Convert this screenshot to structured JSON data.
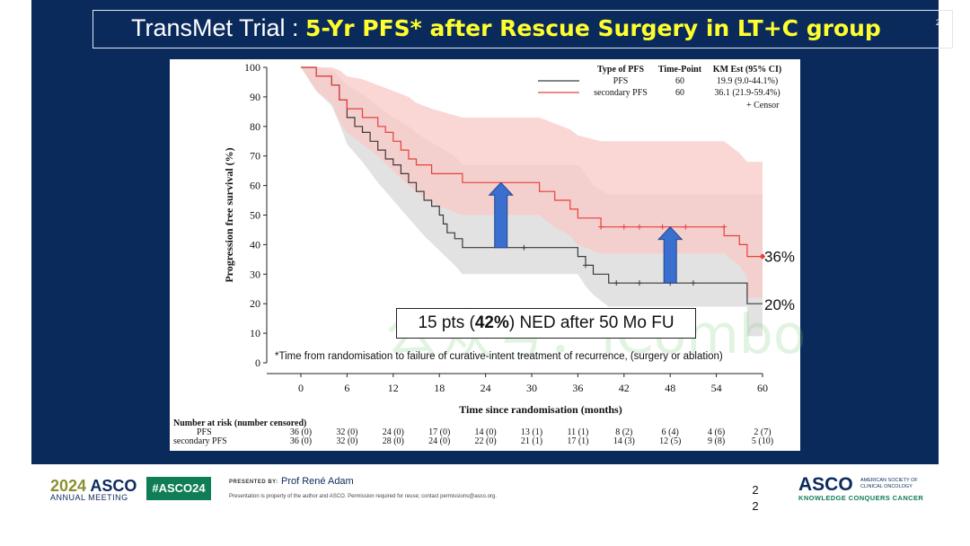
{
  "slide": {
    "title_prefix": "TransMet Trial : ",
    "title_highlight": "5-Yr PFS* after Rescue Surgery in LT+C group",
    "slide_number": "22",
    "annotation_box": {
      "pre": "15 pts (",
      "bold": "42%",
      "post": ") NED after 50 Mo FU"
    },
    "footnote": "*Time from randomisation to failure of curative-intent  treatment of recurrence, (surgery or ablation)",
    "watermark": "公众号：iCombo"
  },
  "chart_data": {
    "type": "line",
    "title": "",
    "xlabel": "Time since randomisation (months)",
    "ylabel": "Progression free survival (%)",
    "xlim": [
      0,
      60
    ],
    "ylim": [
      0,
      100
    ],
    "xticks": [
      0,
      6,
      12,
      18,
      24,
      30,
      36,
      42,
      48,
      54,
      60
    ],
    "yticks": [
      0,
      10,
      20,
      30,
      40,
      50,
      60,
      70,
      80,
      90,
      100
    ],
    "colors": {
      "pfs": "#3a3a3a",
      "secondary_pfs": "#e8413c",
      "pfs_ci": "#e2e2e2",
      "secondary_ci": "#f8c8c6",
      "arrow": "#3a6fd0"
    },
    "legend": {
      "headers": [
        "Type of PFS",
        "Time-Point",
        "KM Est (95% CI)"
      ],
      "rows": [
        {
          "type": "PFS",
          "time_point": "60",
          "km_est": "19.9 (9.0-44.1%)"
        },
        {
          "type": "secondary PFS",
          "time_point": "60",
          "km_est": "36.1 (21.9-59.4%)"
        }
      ],
      "censor_label": "+  Censor"
    },
    "end_labels": {
      "secondary": "36%",
      "pfs": "20%"
    },
    "series": [
      {
        "name": "PFS",
        "steps": [
          [
            0,
            100
          ],
          [
            2,
            100
          ],
          [
            2,
            97
          ],
          [
            4,
            97
          ],
          [
            4,
            94
          ],
          [
            5,
            94
          ],
          [
            5,
            89
          ],
          [
            6,
            89
          ],
          [
            6,
            83
          ],
          [
            7,
            83
          ],
          [
            7,
            80
          ],
          [
            8,
            80
          ],
          [
            8,
            78
          ],
          [
            9,
            78
          ],
          [
            9,
            75
          ],
          [
            10,
            75
          ],
          [
            10,
            72
          ],
          [
            11,
            72
          ],
          [
            11,
            69
          ],
          [
            12,
            69
          ],
          [
            12,
            67
          ],
          [
            13,
            67
          ],
          [
            13,
            64
          ],
          [
            14,
            64
          ],
          [
            14,
            61
          ],
          [
            15,
            61
          ],
          [
            15,
            58
          ],
          [
            16,
            58
          ],
          [
            16,
            55
          ],
          [
            17,
            55
          ],
          [
            17,
            53
          ],
          [
            18,
            53
          ],
          [
            18,
            50
          ],
          [
            18.5,
            50
          ],
          [
            18.5,
            47
          ],
          [
            19,
            47
          ],
          [
            19,
            44
          ],
          [
            20,
            44
          ],
          [
            20,
            42
          ],
          [
            21,
            42
          ],
          [
            21,
            39
          ],
          [
            36,
            39
          ],
          [
            36,
            36
          ],
          [
            37,
            36
          ],
          [
            37,
            33
          ],
          [
            38,
            33
          ],
          [
            38,
            30
          ],
          [
            40,
            30
          ],
          [
            40,
            27
          ],
          [
            58,
            27
          ],
          [
            58,
            20
          ],
          [
            60,
            20
          ]
        ],
        "ci_upper": [
          [
            0,
            100
          ],
          [
            2,
            100
          ],
          [
            4,
            99
          ],
          [
            5,
            97
          ],
          [
            6,
            94
          ],
          [
            8,
            91
          ],
          [
            10,
            87
          ],
          [
            12,
            83
          ],
          [
            14,
            80
          ],
          [
            16,
            76
          ],
          [
            18,
            73
          ],
          [
            20,
            70
          ],
          [
            21,
            67
          ],
          [
            36,
            67
          ],
          [
            37,
            64
          ],
          [
            38,
            60
          ],
          [
            40,
            57
          ],
          [
            58,
            57
          ],
          [
            60,
            57
          ]
        ],
        "ci_lower": [
          [
            0,
            100
          ],
          [
            2,
            92
          ],
          [
            4,
            87
          ],
          [
            5,
            81
          ],
          [
            6,
            74
          ],
          [
            8,
            68
          ],
          [
            10,
            61
          ],
          [
            12,
            55
          ],
          [
            14,
            49
          ],
          [
            16,
            43
          ],
          [
            18,
            38
          ],
          [
            20,
            33
          ],
          [
            21,
            30
          ],
          [
            36,
            30
          ],
          [
            37,
            26
          ],
          [
            38,
            23
          ],
          [
            40,
            19
          ],
          [
            58,
            19
          ],
          [
            58,
            9
          ],
          [
            60,
            9
          ]
        ],
        "censors": [
          [
            29,
            39
          ],
          [
            37,
            33
          ],
          [
            41,
            27
          ],
          [
            44,
            27
          ],
          [
            48,
            27
          ],
          [
            51,
            27
          ]
        ]
      },
      {
        "name": "secondary PFS",
        "steps": [
          [
            0,
            100
          ],
          [
            2,
            100
          ],
          [
            2,
            97
          ],
          [
            4,
            97
          ],
          [
            4,
            94
          ],
          [
            5,
            94
          ],
          [
            5,
            89
          ],
          [
            6,
            89
          ],
          [
            6,
            86
          ],
          [
            8,
            86
          ],
          [
            8,
            83
          ],
          [
            10,
            83
          ],
          [
            10,
            80
          ],
          [
            11,
            80
          ],
          [
            11,
            78
          ],
          [
            12,
            78
          ],
          [
            12,
            75
          ],
          [
            13,
            75
          ],
          [
            13,
            72
          ],
          [
            14,
            72
          ],
          [
            14,
            69
          ],
          [
            15,
            69
          ],
          [
            15,
            67
          ],
          [
            17,
            67
          ],
          [
            17,
            64
          ],
          [
            21,
            64
          ],
          [
            21,
            61
          ],
          [
            31,
            61
          ],
          [
            31,
            58
          ],
          [
            33,
            58
          ],
          [
            33,
            55
          ],
          [
            35,
            55
          ],
          [
            35,
            52
          ],
          [
            36,
            52
          ],
          [
            36,
            49
          ],
          [
            39,
            49
          ],
          [
            39,
            46
          ],
          [
            55,
            46
          ],
          [
            55,
            43
          ],
          [
            57,
            43
          ],
          [
            57,
            40
          ],
          [
            58,
            40
          ],
          [
            58,
            36
          ],
          [
            60,
            36
          ]
        ],
        "ci_upper": [
          [
            0,
            100
          ],
          [
            2,
            100
          ],
          [
            4,
            100
          ],
          [
            5,
            99
          ],
          [
            6,
            97
          ],
          [
            8,
            96
          ],
          [
            10,
            94
          ],
          [
            12,
            92
          ],
          [
            14,
            90
          ],
          [
            15,
            88
          ],
          [
            17,
            86
          ],
          [
            21,
            83
          ],
          [
            31,
            83
          ],
          [
            33,
            81
          ],
          [
            35,
            79
          ],
          [
            36,
            77
          ],
          [
            39,
            75
          ],
          [
            55,
            75
          ],
          [
            57,
            71
          ],
          [
            58,
            68
          ],
          [
            60,
            68
          ]
        ],
        "ci_lower": [
          [
            0,
            100
          ],
          [
            2,
            92
          ],
          [
            4,
            88
          ],
          [
            5,
            82
          ],
          [
            6,
            78
          ],
          [
            8,
            74
          ],
          [
            10,
            70
          ],
          [
            12,
            65
          ],
          [
            14,
            60
          ],
          [
            15,
            58
          ],
          [
            17,
            54
          ],
          [
            21,
            50
          ],
          [
            31,
            50
          ],
          [
            33,
            46
          ],
          [
            35,
            43
          ],
          [
            36,
            40
          ],
          [
            39,
            37
          ],
          [
            55,
            37
          ],
          [
            57,
            33
          ],
          [
            58,
            29
          ],
          [
            58,
            22
          ],
          [
            60,
            22
          ]
        ],
        "censors": [
          [
            39,
            46
          ],
          [
            42,
            46
          ],
          [
            44,
            46
          ],
          [
            47,
            46
          ],
          [
            50,
            46
          ],
          [
            55,
            46
          ],
          [
            60,
            36
          ]
        ]
      }
    ],
    "arrows": [
      {
        "x": 26,
        "from_y": 39,
        "to_y": 61
      },
      {
        "x": 48,
        "from_y": 27,
        "to_y": 46
      }
    ],
    "risk_table": {
      "header": "Number at risk (number censored)",
      "times": [
        0,
        6,
        12,
        18,
        24,
        30,
        36,
        42,
        48,
        54,
        60
      ],
      "rows": [
        {
          "label": "PFS",
          "values": [
            "36 (0)",
            "32 (0)",
            "24 (0)",
            "17 (0)",
            "14 (0)",
            "13 (1)",
            "11 (1)",
            "8 (2)",
            "6 (4)",
            "4 (6)",
            "2 (7)"
          ]
        },
        {
          "label": "secondary PFS",
          "values": [
            "36 (0)",
            "32 (0)",
            "28 (0)",
            "24 (0)",
            "22 (0)",
            "21 (1)",
            "17 (1)",
            "14 (3)",
            "12 (5)",
            "9 (8)",
            "5 (10)"
          ]
        }
      ]
    }
  },
  "footer": {
    "year": "2024",
    "brand": "ASCO",
    "meeting": "ANNUAL MEETING",
    "hashtag": "#ASCO24",
    "presented_by": "PRESENTED BY:",
    "presenter": "Prof René Adam",
    "permission": "Presentation is property of the author and ASCO. Permission required for reuse; contact permissions@asco.org.",
    "slide_number": "22",
    "logo": "ASCO",
    "society": "AMERICAN SOCIETY OF CLINICAL ONCOLOGY",
    "tagline": "KNOWLEDGE CONQUERS CANCER"
  }
}
